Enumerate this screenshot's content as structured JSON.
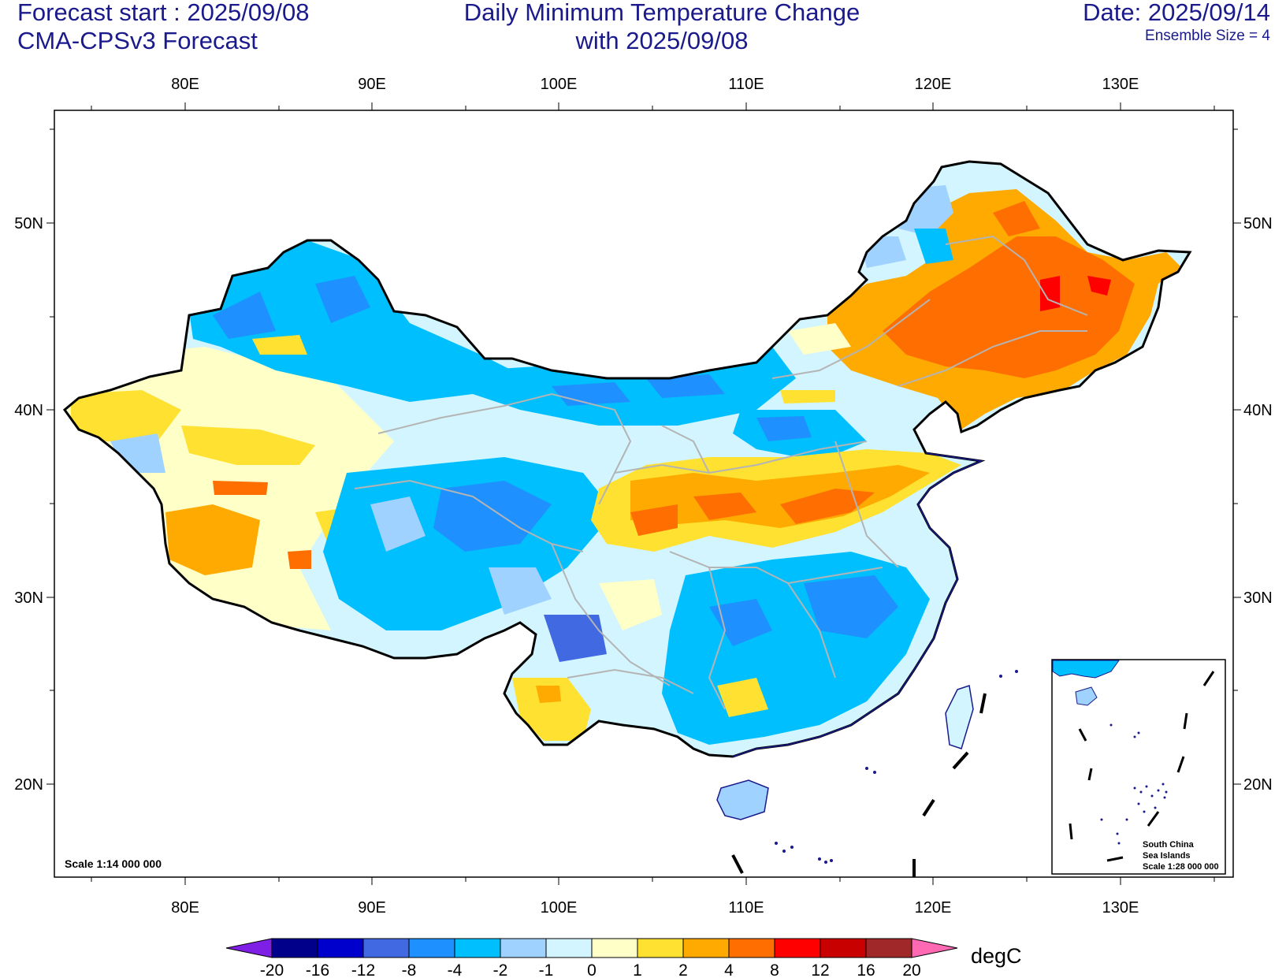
{
  "header": {
    "forecast_start": "Forecast start : 2025/09/08",
    "model": "CMA-CPSv3 Forecast",
    "title_line1": "Daily Minimum Temperature Change",
    "title_line2": "with 2025/09/08",
    "date": "Date: 2025/09/14",
    "ensemble": "Ensemble Size = 4"
  },
  "map": {
    "lon_labels": [
      "80E",
      "90E",
      "100E",
      "110E",
      "120E",
      "130E"
    ],
    "lat_labels": [
      "50N",
      "40N",
      "30N",
      "20N"
    ],
    "scale_main": "Scale 1:14 000 000",
    "inset": {
      "line1": "South China",
      "line2": "Sea Islands",
      "line3": "Scale 1:28 000 000"
    }
  },
  "colorbar": {
    "unit": "degC",
    "labels": [
      "-20",
      "-16",
      "-12",
      "-8",
      "-4",
      "-2",
      "-1",
      "0",
      "1",
      "2",
      "4",
      "8",
      "12",
      "16",
      "20"
    ],
    "colors": [
      "#7f1fe6",
      "#00008b",
      "#0000cd",
      "#4169e1",
      "#1e90ff",
      "#00bfff",
      "#a0d2ff",
      "#d2f5ff",
      "#ffffc8",
      "#ffe132",
      "#ffaa00",
      "#ff6e00",
      "#ff0000",
      "#c80000",
      "#a02828",
      "#ff69b4"
    ]
  }
}
